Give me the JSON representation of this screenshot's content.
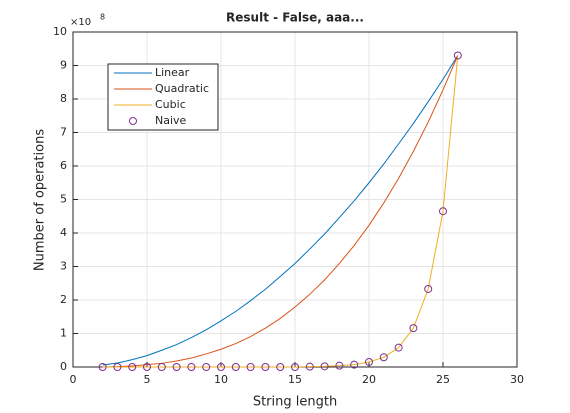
{
  "chart_data": {
    "type": "line",
    "title": "Result - False, aaa...",
    "x_label": "String length",
    "y_label": "Number of operations",
    "y_multiplier_base": "×10",
    "y_multiplier_exponent": "8",
    "x": [
      2,
      3,
      4,
      5,
      6,
      7,
      8,
      9,
      10,
      11,
      12,
      13,
      14,
      15,
      16,
      17,
      18,
      19,
      20,
      21,
      22,
      23,
      24,
      25,
      26
    ],
    "series": [
      {
        "name": "Linear",
        "color": "#0072bd",
        "style": "line",
        "values": [
          0.06,
          0.12,
          0.22,
          0.34,
          0.5,
          0.67,
          0.88,
          1.11,
          1.38,
          1.66,
          1.98,
          2.32,
          2.7,
          3.09,
          3.52,
          3.97,
          4.46,
          4.96,
          5.5,
          6.06,
          6.66,
          7.27,
          7.92,
          8.59,
          9.3
        ]
      },
      {
        "name": "Quadratic",
        "color": "#d95319",
        "style": "line",
        "values": [
          0,
          0.01,
          0.03,
          0.07,
          0.11,
          0.18,
          0.27,
          0.39,
          0.53,
          0.7,
          0.91,
          1.16,
          1.45,
          1.79,
          2.17,
          2.6,
          3.09,
          3.63,
          4.23,
          4.9,
          5.63,
          6.44,
          7.31,
          8.27,
          9.3
        ]
      },
      {
        "name": "Cubic",
        "color": "#edb120",
        "style": "line",
        "values": [
          0,
          0,
          0,
          0,
          0,
          0,
          0,
          0,
          0,
          0,
          0,
          0,
          0,
          0,
          0.01,
          0.02,
          0.04,
          0.07,
          0.15,
          0.29,
          0.58,
          1.16,
          2.33,
          4.65,
          9.3
        ]
      },
      {
        "name": "Naive",
        "color": "#7e2f8e",
        "style": "marker",
        "values": [
          0,
          0,
          0,
          0,
          0,
          0,
          0,
          0,
          0,
          0,
          0,
          0,
          0,
          0,
          0.01,
          0.02,
          0.04,
          0.07,
          0.15,
          0.29,
          0.58,
          1.16,
          2.33,
          4.65,
          9.3
        ]
      }
    ],
    "xlim": [
      0,
      30
    ],
    "xticks": [
      0,
      5,
      10,
      15,
      20,
      25,
      30
    ],
    "ylim": [
      0,
      10
    ],
    "yticks": [
      0,
      1,
      2,
      3,
      4,
      5,
      6,
      7,
      8,
      9,
      10
    ],
    "grid": true,
    "legend": "northwest"
  }
}
